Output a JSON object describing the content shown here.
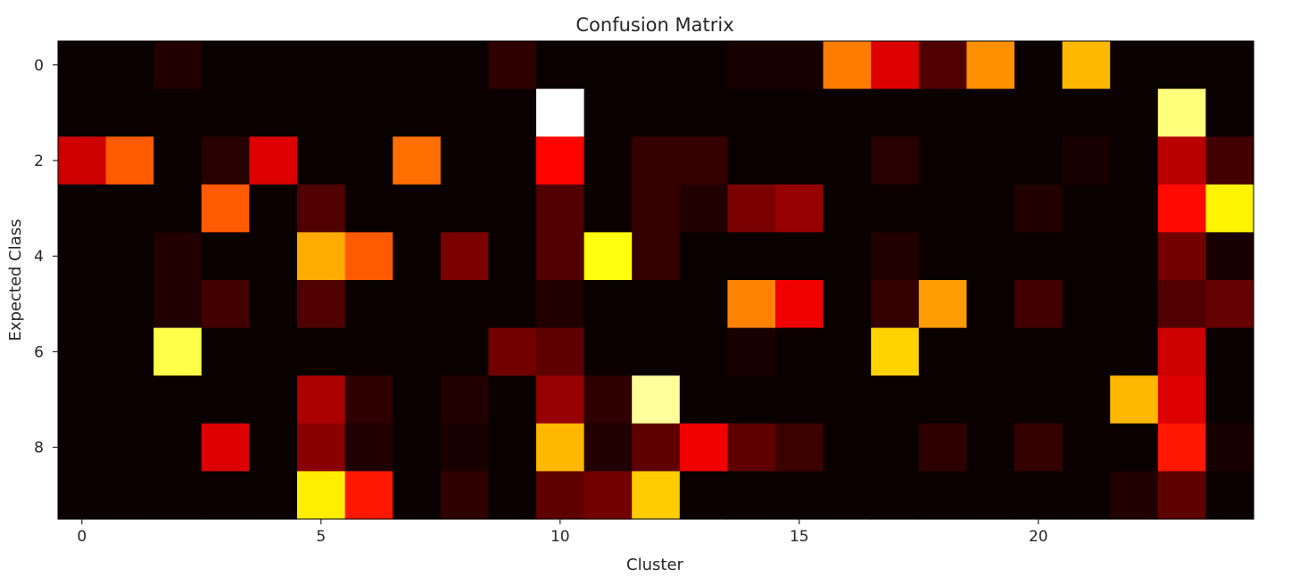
{
  "chart_data": {
    "type": "heatmap",
    "title": "Confusion Matrix",
    "xlabel": "Cluster",
    "ylabel": "Expected Class",
    "colormap": "hot",
    "x_categories": [
      0,
      1,
      2,
      3,
      4,
      5,
      6,
      7,
      8,
      9,
      10,
      11,
      12,
      13,
      14,
      15,
      16,
      17,
      18,
      19,
      20,
      21,
      22,
      23,
      24
    ],
    "y_categories": [
      0,
      1,
      2,
      3,
      4,
      5,
      6,
      7,
      8,
      9
    ],
    "x_ticks": [
      0,
      5,
      10,
      15,
      20
    ],
    "y_ticks": [
      0,
      2,
      4,
      6,
      8
    ],
    "x_tick_labels": [
      "0",
      "5",
      "10",
      "15",
      "20"
    ],
    "y_tick_labels": [
      "0",
      "2",
      "4",
      "6",
      "8"
    ],
    "value_range": [
      0,
      1
    ],
    "values": [
      [
        0.0,
        0.0,
        0.03,
        0.0,
        0.0,
        0.0,
        0.0,
        0.0,
        0.0,
        0.05,
        0.0,
        0.0,
        0.0,
        0.0,
        0.02,
        0.02,
        0.55,
        0.3,
        0.1,
        0.58,
        0.0,
        0.64,
        0.0,
        0.0,
        0.0
      ],
      [
        0.0,
        0.0,
        0.0,
        0.0,
        0.0,
        0.0,
        0.0,
        0.0,
        0.0,
        0.0,
        1.0,
        0.0,
        0.0,
        0.0,
        0.0,
        0.0,
        0.0,
        0.0,
        0.0,
        0.0,
        0.0,
        0.0,
        0.0,
        0.87,
        0.0
      ],
      [
        0.28,
        0.5,
        0.0,
        0.04,
        0.3,
        0.0,
        0.0,
        0.53,
        0.0,
        0.0,
        0.37,
        0.0,
        0.06,
        0.06,
        0.0,
        0.0,
        0.0,
        0.04,
        0.0,
        0.0,
        0.0,
        0.02,
        0.0,
        0.25,
        0.08
      ],
      [
        0.0,
        0.0,
        0.0,
        0.5,
        0.0,
        0.1,
        0.0,
        0.0,
        0.0,
        0.0,
        0.1,
        0.0,
        0.06,
        0.03,
        0.16,
        0.2,
        0.0,
        0.0,
        0.0,
        0.0,
        0.03,
        0.0,
        0.0,
        0.38,
        0.73
      ],
      [
        0.0,
        0.0,
        0.03,
        0.0,
        0.0,
        0.62,
        0.5,
        0.0,
        0.16,
        0.0,
        0.1,
        0.76,
        0.06,
        0.0,
        0.0,
        0.0,
        0.0,
        0.03,
        0.0,
        0.0,
        0.0,
        0.0,
        0.0,
        0.15,
        0.02
      ],
      [
        0.0,
        0.0,
        0.03,
        0.08,
        0.0,
        0.1,
        0.0,
        0.0,
        0.0,
        0.0,
        0.03,
        0.0,
        0.0,
        0.0,
        0.56,
        0.33,
        0.0,
        0.06,
        0.6,
        0.0,
        0.08,
        0.0,
        0.0,
        0.1,
        0.13
      ],
      [
        0.0,
        0.0,
        0.82,
        0.0,
        0.0,
        0.0,
        0.0,
        0.0,
        0.0,
        0.15,
        0.12,
        0.0,
        0.0,
        0.0,
        0.02,
        0.0,
        0.0,
        0.68,
        0.0,
        0.0,
        0.0,
        0.0,
        0.0,
        0.28,
        0.0
      ],
      [
        0.0,
        0.0,
        0.0,
        0.0,
        0.0,
        0.23,
        0.05,
        0.0,
        0.03,
        0.0,
        0.2,
        0.05,
        0.9,
        0.0,
        0.0,
        0.0,
        0.0,
        0.0,
        0.0,
        0.0,
        0.0,
        0.0,
        0.64,
        0.3,
        0.0
      ],
      [
        0.0,
        0.0,
        0.0,
        0.3,
        0.0,
        0.18,
        0.03,
        0.0,
        0.02,
        0.0,
        0.64,
        0.03,
        0.12,
        0.33,
        0.12,
        0.07,
        0.0,
        0.0,
        0.05,
        0.0,
        0.06,
        0.0,
        0.0,
        0.4,
        0.02
      ],
      [
        0.0,
        0.0,
        0.0,
        0.0,
        0.0,
        0.72,
        0.4,
        0.0,
        0.05,
        0.0,
        0.12,
        0.15,
        0.67,
        0.0,
        0.0,
        0.0,
        0.0,
        0.0,
        0.0,
        0.0,
        0.0,
        0.0,
        0.03,
        0.12,
        0.0
      ]
    ]
  }
}
